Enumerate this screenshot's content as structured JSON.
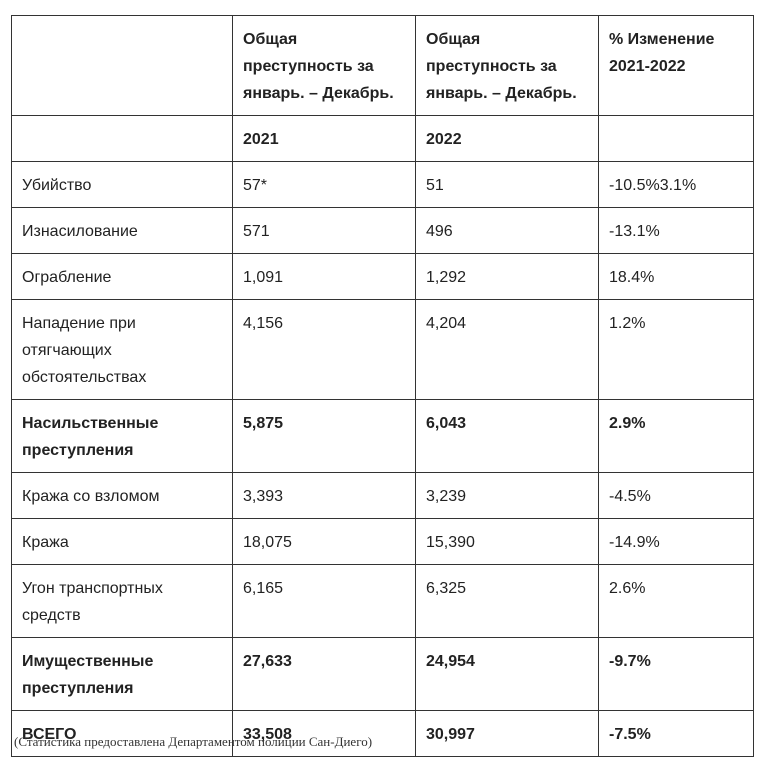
{
  "table": {
    "header": [
      "Общая преступность за январь. – Декабрь.",
      "Общая преступность за январь. – Декабрь.",
      "% Изменение 2021-2022"
    ],
    "years": [
      "2021",
      "2022"
    ],
    "rows": [
      [
        "Убийство",
        "57*",
        "51",
        "-10.5%3.1%"
      ],
      [
        "Изнасилование",
        "571",
        "496",
        "-13.1%"
      ],
      [
        "Ограбление",
        "1,091",
        "1,292",
        "18.4%"
      ],
      [
        "Нападение при отягчающих обстоятельствах",
        "4,156",
        "4,204",
        "1.2%"
      ],
      [
        "Насильственные преступления",
        "5,875",
        "6,043",
        "2.9%"
      ],
      [
        "Кража со взломом",
        "3,393",
        "3,239",
        "-4.5%"
      ],
      [
        "Кража",
        "18,075",
        "15,390",
        "-14.9%"
      ],
      [
        "Угон транспортных средств",
        "6,165",
        "6,325",
        "2.6%"
      ],
      [
        "Имущественные преступления",
        "27,633",
        "24,954",
        "-9.7%"
      ],
      [
        "ВСЕГО",
        "33,508",
        "30,997",
        "-7.5%"
      ]
    ]
  },
  "footnote": "(Статистика предоставлена Департаментом полиции Сан-Диего)"
}
